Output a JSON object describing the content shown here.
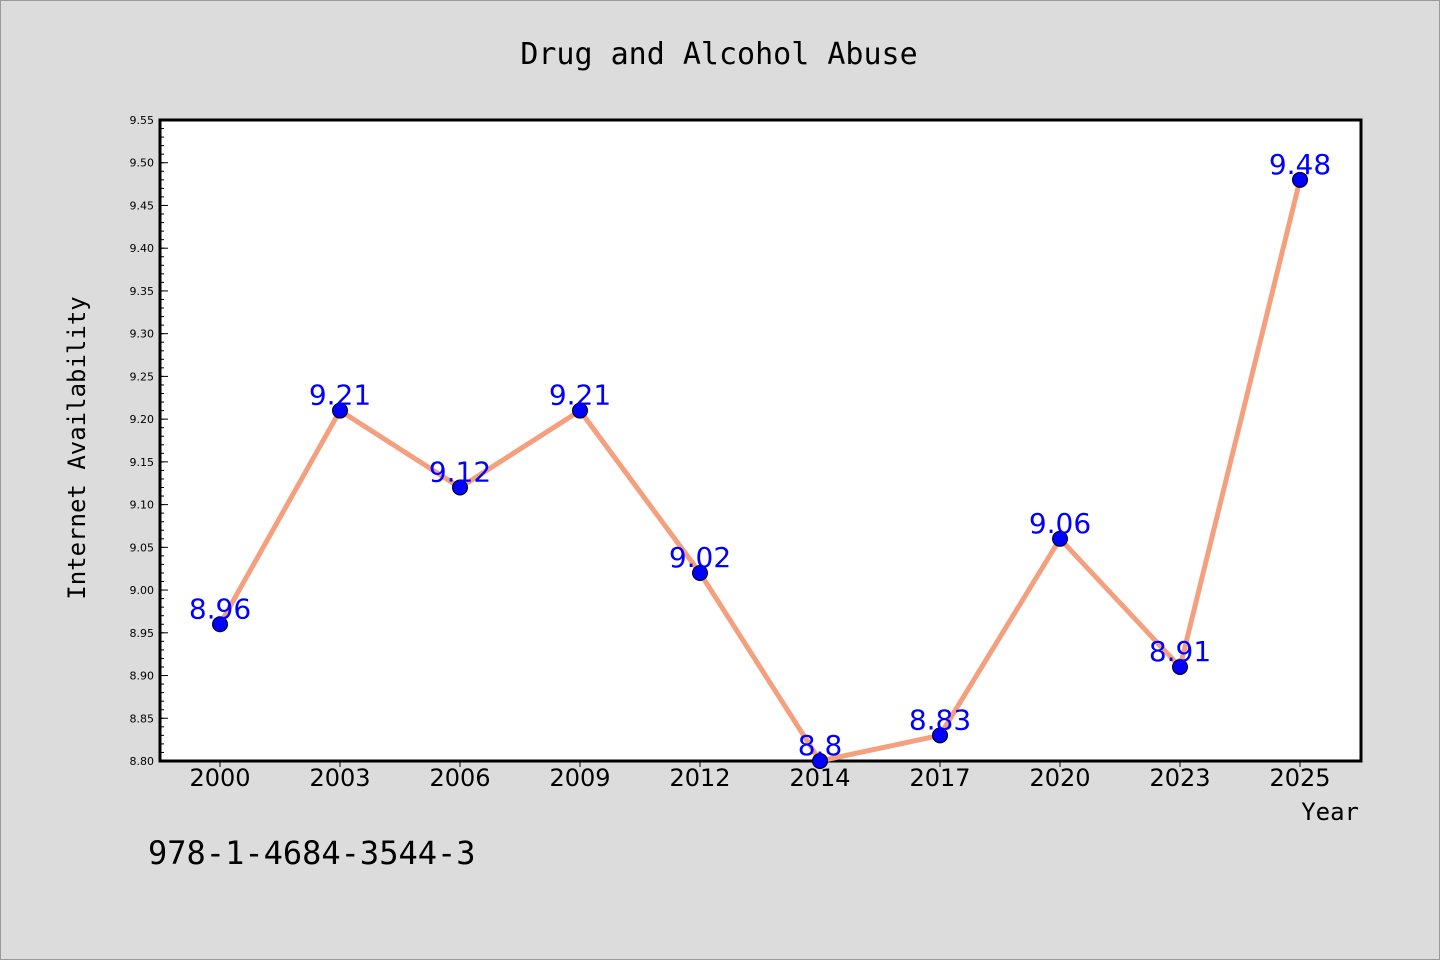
{
  "chart_data": {
    "type": "line",
    "title": "Drug and Alcohol Abuse",
    "xlabel": "Year",
    "ylabel": "Internet Availability",
    "categories": [
      "2000",
      "2003",
      "2006",
      "2009",
      "2012",
      "2014",
      "2017",
      "2020",
      "2023",
      "2025"
    ],
    "values": [
      8.96,
      9.21,
      9.12,
      9.21,
      9.02,
      8.8,
      8.83,
      9.06,
      8.91,
      9.48
    ],
    "data_labels": [
      "8.96",
      "9.21",
      "9.12",
      "9.21",
      "9.02",
      "8.8",
      "8.83",
      "9.06",
      "8.91",
      "9.48"
    ],
    "ylim": [
      8.8,
      9.55
    ],
    "yticks": [
      "8.80",
      "8.85",
      "8.90",
      "8.95",
      "9.00",
      "9.05",
      "9.10",
      "9.15",
      "9.20",
      "9.25",
      "9.30",
      "9.35",
      "9.40",
      "9.45",
      "9.50",
      "9.55"
    ],
    "grid": false,
    "legend": "none",
    "line_color": "#f4a07f",
    "marker_color": "#0000ff",
    "label_color": "#0000ff"
  },
  "footer": {
    "isbn": "978-1-4684-3544-3"
  }
}
